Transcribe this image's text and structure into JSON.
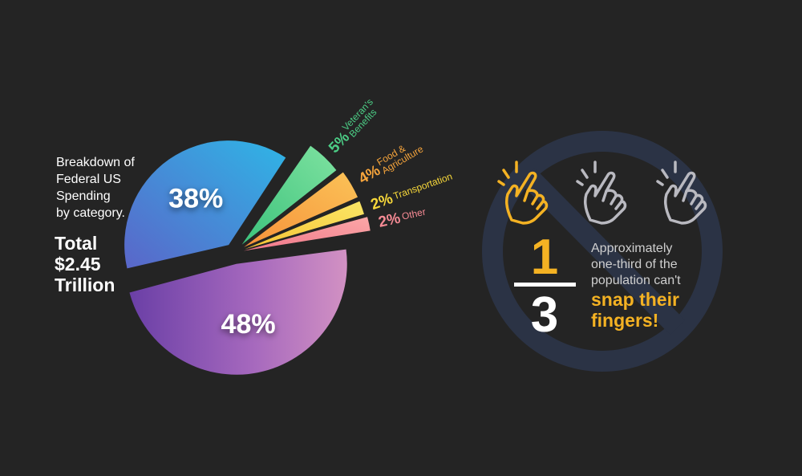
{
  "chart_data": {
    "type": "pie",
    "title": "Breakdown of Federal US Spending by category.",
    "total_label": [
      "Total",
      "$2.45",
      "Trillion"
    ],
    "slices": [
      {
        "label": "",
        "value": 48,
        "display": "48%",
        "color": "#b27bc8"
      },
      {
        "label": "",
        "value": 38,
        "display": "38%",
        "color": "#3c8ed6"
      },
      {
        "label": "Veteran's Benefits",
        "value": 5,
        "display": "5%",
        "color": "#4cce86"
      },
      {
        "label": "Food & Agriculture",
        "value": 4,
        "display": "4%",
        "color": "#f7a53c"
      },
      {
        "label": "Transportation",
        "value": 2,
        "display": "2%",
        "color": "#f6d73a"
      },
      {
        "label": "Other",
        "value": 2,
        "display": "2%",
        "color": "#f58a94"
      }
    ]
  },
  "intro_lines": [
    "Breakdown of",
    "Federal US",
    "Spending",
    "by category."
  ],
  "snap_panel": {
    "numerator": "1",
    "denominator": "3",
    "caption_lines": [
      "Approximately",
      "one-third of the",
      "population can't"
    ],
    "highlight_lines": [
      "snap their",
      "fingers!"
    ],
    "accent_color": "#f4b223",
    "hand_icons": [
      "snapping-hand-icon",
      "snapping-hand-icon",
      "snapping-hand-icon"
    ]
  }
}
